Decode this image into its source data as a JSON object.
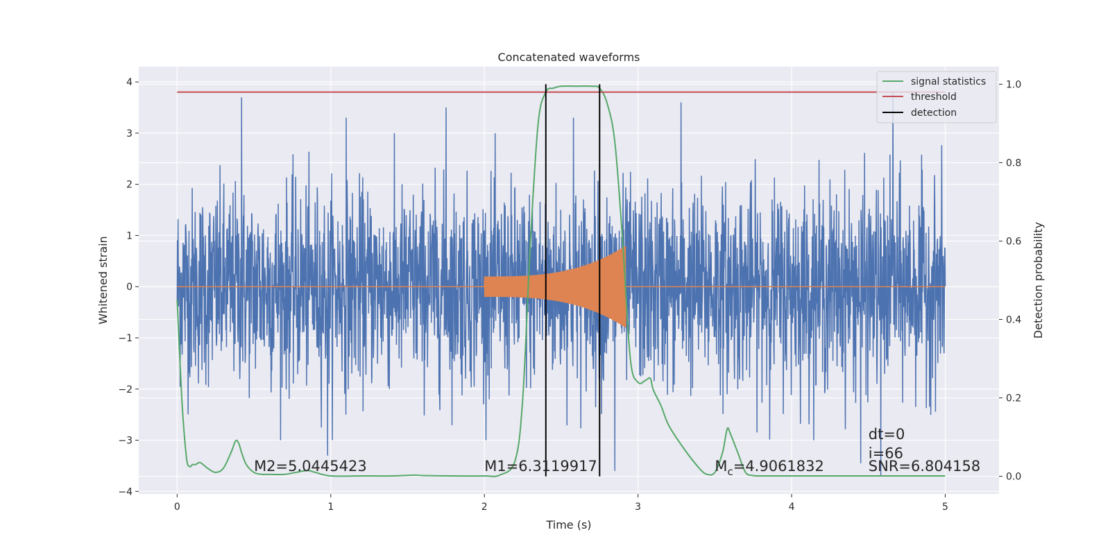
{
  "chart_data": {
    "type": "line",
    "title": "Concatenated waveforms",
    "xlabel": "Time (s)",
    "ylabel": "Whitened strain",
    "y2label": "Detection probability",
    "xlim": [
      -0.25,
      5.35
    ],
    "ylim": [
      -4.05,
      4.3
    ],
    "y2lim": [
      -0.045,
      1.045
    ],
    "xticks": [
      0,
      1,
      2,
      3,
      4,
      5
    ],
    "yticks": [
      -4,
      -3,
      -2,
      -1,
      0,
      1,
      2,
      3,
      4
    ],
    "y2ticks": [
      0.0,
      0.2,
      0.4,
      0.6,
      0.8,
      1.0
    ],
    "y2tick_labels": [
      "0.0",
      "0.2",
      "0.4",
      "0.6",
      "0.8",
      "1.0"
    ],
    "grid": true,
    "legend_position": "top-right",
    "colors": {
      "strain": "#4c72b0",
      "template": "#dd8452",
      "signal_statistics": "#55a868",
      "threshold": "#c44e52",
      "detection": "#000000",
      "plot_bg": "#eaeaf2"
    },
    "series": [
      {
        "kind": "strain",
        "x_range": [
          0,
          5
        ],
        "envelope_typical": 2.0,
        "peaks": [
          [
            0.42,
            3.7
          ],
          [
            0.98,
            -3.3
          ],
          [
            1.1,
            3.3
          ],
          [
            1.75,
            3.5
          ],
          [
            2.58,
            3.3
          ],
          [
            2.85,
            -3.6
          ],
          [
            3.28,
            3.6
          ],
          [
            4.45,
            -3.45
          ],
          [
            4.58,
            -3.7
          ],
          [
            4.66,
            3.8
          ]
        ]
      },
      {
        "kind": "template",
        "chirp_start": 2.0,
        "chirp_end": 2.92,
        "amp_start": 0.2,
        "amp_end": 0.8
      },
      {
        "name": "signal statistics",
        "axis": "right",
        "x": [
          0,
          0.03,
          0.06,
          0.08,
          0.1,
          0.12,
          0.15,
          0.2,
          0.25,
          0.3,
          0.35,
          0.38,
          0.4,
          0.42,
          0.45,
          0.5,
          0.55,
          0.6,
          0.7,
          0.8,
          0.85,
          0.9,
          1.0,
          1.2,
          1.4,
          1.55,
          1.6,
          1.8,
          2.0,
          2.1,
          2.2,
          2.25,
          2.3,
          2.35,
          2.4,
          2.45,
          2.5,
          2.6,
          2.7,
          2.75,
          2.8,
          2.85,
          2.9,
          2.95,
          3.0,
          3.05,
          3.08,
          3.1,
          3.15,
          3.2,
          3.3,
          3.4,
          3.45,
          3.5,
          3.55,
          3.58,
          3.6,
          3.65,
          3.7,
          3.75,
          3.8,
          4.0,
          4.5,
          5.0
        ],
        "values": [
          0.45,
          0.2,
          0.05,
          0.025,
          0.03,
          0.03,
          0.035,
          0.02,
          0.01,
          0.02,
          0.06,
          0.09,
          0.085,
          0.06,
          0.03,
          0.01,
          0.005,
          0.005,
          0.005,
          0.012,
          0.015,
          0.01,
          0.001,
          0.001,
          0.001,
          0.003,
          0.002,
          0.001,
          0.001,
          0.003,
          0.04,
          0.2,
          0.6,
          0.9,
          0.98,
          0.99,
          0.995,
          0.995,
          0.995,
          0.99,
          0.95,
          0.85,
          0.6,
          0.3,
          0.24,
          0.245,
          0.25,
          0.22,
          0.18,
          0.13,
          0.07,
          0.02,
          0.005,
          0.01,
          0.06,
          0.12,
          0.11,
          0.06,
          0.01,
          0.002,
          0.001,
          0.001,
          0.001,
          0.001
        ]
      },
      {
        "name": "threshold",
        "axis": "right",
        "x": [
          0,
          5
        ],
        "values": [
          0.98,
          0.98
        ]
      },
      {
        "name": "detection",
        "axis": "right",
        "x": [
          2.4,
          2.75
        ],
        "range": [
          0,
          1.0
        ]
      }
    ],
    "annotations": [
      {
        "id": "m2",
        "text": "M2=5.0445423",
        "x": 0.5,
        "y": -3.6
      },
      {
        "id": "m1",
        "text": "M1=6.3119917",
        "x": 2.0,
        "y": -3.6
      },
      {
        "id": "mc",
        "text_prefix": "M",
        "text_sub": "c",
        "text_suffix": "=4.9061832",
        "x": 3.5,
        "y": -3.6
      },
      {
        "id": "dt",
        "text": "dt=0",
        "x": 4.5,
        "y": -2.98
      },
      {
        "id": "i",
        "text": "i=66",
        "x": 4.5,
        "y": -3.35
      },
      {
        "id": "snr",
        "text": "SNR=6.804158",
        "x": 4.5,
        "y": -3.6
      }
    ]
  }
}
